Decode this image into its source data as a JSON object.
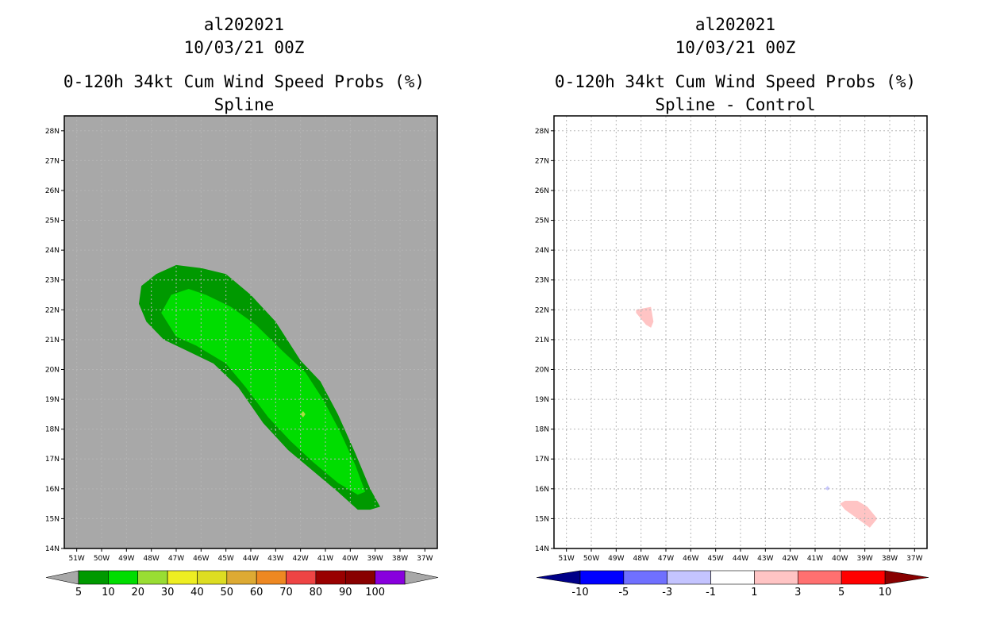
{
  "colors": {
    "background": "#ffffff",
    "land_gray": "#a8a8a8",
    "grid": "#b5b5b5"
  },
  "left_panel": {
    "title_line1": "al202021",
    "title_line2": "10/03/21 00Z",
    "title_line3": "0-120h 34kt Cum Wind Speed Probs (%)",
    "title_line4": "Spline"
  },
  "right_panel": {
    "title_line1": "al202021",
    "title_line2": "10/03/21 00Z",
    "title_line3": "0-120h 34kt Cum Wind Speed Probs (%)",
    "title_line4": "Spline - Control"
  },
  "chart_data": [
    {
      "type": "heatmap",
      "title": "0-120h 34kt Cum Wind Speed Probs (%) Spline",
      "xlim": [
        -51.5,
        -36.5
      ],
      "ylim": [
        14,
        28.5
      ],
      "x_ticks": [
        "51W",
        "50W",
        "49W",
        "48W",
        "47W",
        "46W",
        "45W",
        "44W",
        "43W",
        "42W",
        "41W",
        "40W",
        "39W",
        "38W",
        "37W"
      ],
      "y_ticks": [
        "14N",
        "15N",
        "16N",
        "17N",
        "18N",
        "19N",
        "20N",
        "21N",
        "22N",
        "23N",
        "24N",
        "25N",
        "26N",
        "27N",
        "28N"
      ],
      "grid": true,
      "contours": [
        {
          "level": "5-10",
          "color": "#009900",
          "lonlat": [
            [
              -47.0,
              23.5
            ],
            [
              -46.0,
              23.4
            ],
            [
              -45.0,
              23.2
            ],
            [
              -44.0,
              22.5
            ],
            [
              -43.0,
              21.6
            ],
            [
              -42.0,
              20.3
            ],
            [
              -41.2,
              19.6
            ],
            [
              -40.5,
              18.5
            ],
            [
              -39.8,
              17.2
            ],
            [
              -39.2,
              16.0
            ],
            [
              -38.8,
              15.4
            ],
            [
              -39.2,
              15.3
            ],
            [
              -39.7,
              15.3
            ],
            [
              -40.5,
              15.9
            ],
            [
              -41.5,
              16.6
            ],
            [
              -42.5,
              17.3
            ],
            [
              -43.5,
              18.2
            ],
            [
              -44.5,
              19.4
            ],
            [
              -45.5,
              20.2
            ],
            [
              -46.5,
              20.6
            ],
            [
              -47.5,
              21.0
            ],
            [
              -48.2,
              21.6
            ],
            [
              -48.5,
              22.2
            ],
            [
              -48.4,
              22.8
            ],
            [
              -47.8,
              23.2
            ]
          ]
        },
        {
          "level": "10-20",
          "color": "#00dd00",
          "lonlat": [
            [
              -46.5,
              22.7
            ],
            [
              -45.8,
              22.5
            ],
            [
              -44.8,
              22.1
            ],
            [
              -43.8,
              21.5
            ],
            [
              -42.7,
              20.6
            ],
            [
              -41.8,
              19.9
            ],
            [
              -41.1,
              19.0
            ],
            [
              -40.4,
              17.9
            ],
            [
              -39.8,
              16.8
            ],
            [
              -39.4,
              15.9
            ],
            [
              -39.7,
              15.8
            ],
            [
              -40.5,
              16.2
            ],
            [
              -41.5,
              16.9
            ],
            [
              -42.4,
              17.6
            ],
            [
              -43.3,
              18.4
            ],
            [
              -44.2,
              19.4
            ],
            [
              -45.0,
              20.2
            ],
            [
              -46.2,
              20.8
            ],
            [
              -47.0,
              21.1
            ],
            [
              -47.6,
              21.9
            ],
            [
              -47.2,
              22.5
            ]
          ]
        }
      ],
      "markers": [
        {
          "lon": -41.9,
          "lat": 18.5,
          "color": "#aadd44"
        }
      ]
    },
    {
      "type": "heatmap",
      "title": "0-120h 34kt Cum Wind Speed Probs (%) Spline - Control",
      "xlim": [
        -51.5,
        -36.5
      ],
      "ylim": [
        14,
        28.5
      ],
      "x_ticks": [
        "51W",
        "50W",
        "49W",
        "48W",
        "47W",
        "46W",
        "45W",
        "44W",
        "43W",
        "42W",
        "41W",
        "40W",
        "39W",
        "38W",
        "37W"
      ],
      "y_ticks": [
        "14N",
        "15N",
        "16N",
        "17N",
        "18N",
        "19N",
        "20N",
        "21N",
        "22N",
        "23N",
        "24N",
        "25N",
        "26N",
        "27N",
        "28N"
      ],
      "grid": true,
      "contours": [
        {
          "level": "1-3",
          "color": "#ffc4c4",
          "lonlat": [
            [
              -48.2,
              22.0
            ],
            [
              -47.6,
              22.1
            ],
            [
              -47.5,
              21.6
            ],
            [
              -47.6,
              21.4
            ],
            [
              -47.8,
              21.5
            ],
            [
              -48.2,
              21.9
            ]
          ]
        },
        {
          "level": "1-3",
          "color": "#ffc4c4",
          "lonlat": [
            [
              -39.8,
              15.6
            ],
            [
              -39.3,
              15.6
            ],
            [
              -38.9,
              15.4
            ],
            [
              -38.5,
              15.0
            ],
            [
              -38.8,
              14.7
            ],
            [
              -39.3,
              15.0
            ],
            [
              -39.8,
              15.3
            ],
            [
              -40.0,
              15.5
            ]
          ]
        },
        {
          "level": "-3 to -1",
          "color": "#c8c8ff",
          "lonlat": [
            [
              -40.5,
              16.1
            ],
            [
              -40.4,
              16.0
            ],
            [
              -40.5,
              15.95
            ],
            [
              -40.6,
              16.0
            ]
          ]
        }
      ],
      "markers": []
    }
  ],
  "legend_left": {
    "labels": [
      "5",
      "10",
      "20",
      "30",
      "40",
      "50",
      "60",
      "70",
      "80",
      "90",
      "100"
    ],
    "colors": [
      "#009900",
      "#00dd00",
      "#99dd33",
      "#eeee22",
      "#dddd22",
      "#ddaa33",
      "#ee8822",
      "#ee4444",
      "#990000",
      "#880000",
      "#8800dd"
    ],
    "end_color": "#a8a8a8"
  },
  "legend_right": {
    "labels": [
      "-10",
      "-5",
      "-3",
      "-1",
      "1",
      "3",
      "5",
      "10"
    ],
    "colors": [
      "#0000ff",
      "#7070ff",
      "#c4c4ff",
      "#ffffff",
      "#ffc4c4",
      "#ff7070",
      "#ff0000"
    ],
    "end_low": "#000088",
    "end_high": "#880000"
  }
}
